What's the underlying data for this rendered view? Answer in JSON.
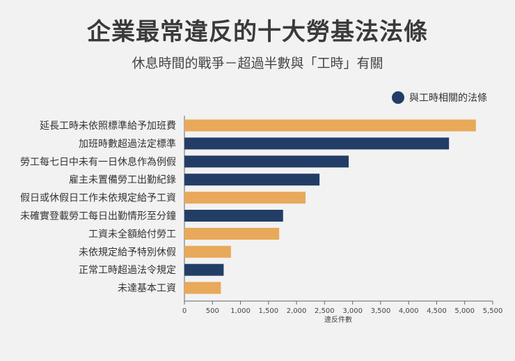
{
  "chart_data": {
    "type": "bar",
    "orientation": "horizontal",
    "title": "企業最常違反的十大勞基法法條",
    "subtitle": "休息時間的戰爭－超過半數與「工時」有關",
    "xlabel": "違反件數",
    "ylabel": "",
    "xlim": [
      0,
      5500
    ],
    "xticks": [
      0,
      500,
      1000,
      1500,
      2000,
      2500,
      3000,
      3500,
      4000,
      4500,
      5000,
      5500
    ],
    "xtick_labels": [
      "0",
      "500",
      "1,000",
      "1,500",
      "2,000",
      "2,500",
      "3,000",
      "3,500",
      "4,000",
      "4,500",
      "5,000",
      "5,500"
    ],
    "legend": {
      "label": "與工時相關的法條",
      "color": "#233e66",
      "position": "top-right"
    },
    "colors": {
      "work_hours": "#233e66",
      "other": "#e8a95a"
    },
    "categories": [
      "延長工時未依照標準給予加班費",
      "加班時數超過法定標準",
      "勞工每七日中未有一日休息作為例假",
      "雇主未置備勞工出勤紀錄",
      "假日或休假日工作未依規定給予工資",
      "未確實登載勞工每日出勤情形至分鐘",
      "工資未全額給付勞工",
      "未依規定給予特別休假",
      "正常工時超過法令規定",
      "未達基本工資"
    ],
    "values": [
      5200,
      4720,
      2930,
      2410,
      2160,
      1760,
      1690,
      830,
      700,
      650
    ],
    "work_hours_related": [
      false,
      true,
      true,
      true,
      false,
      true,
      false,
      false,
      true,
      false
    ]
  }
}
